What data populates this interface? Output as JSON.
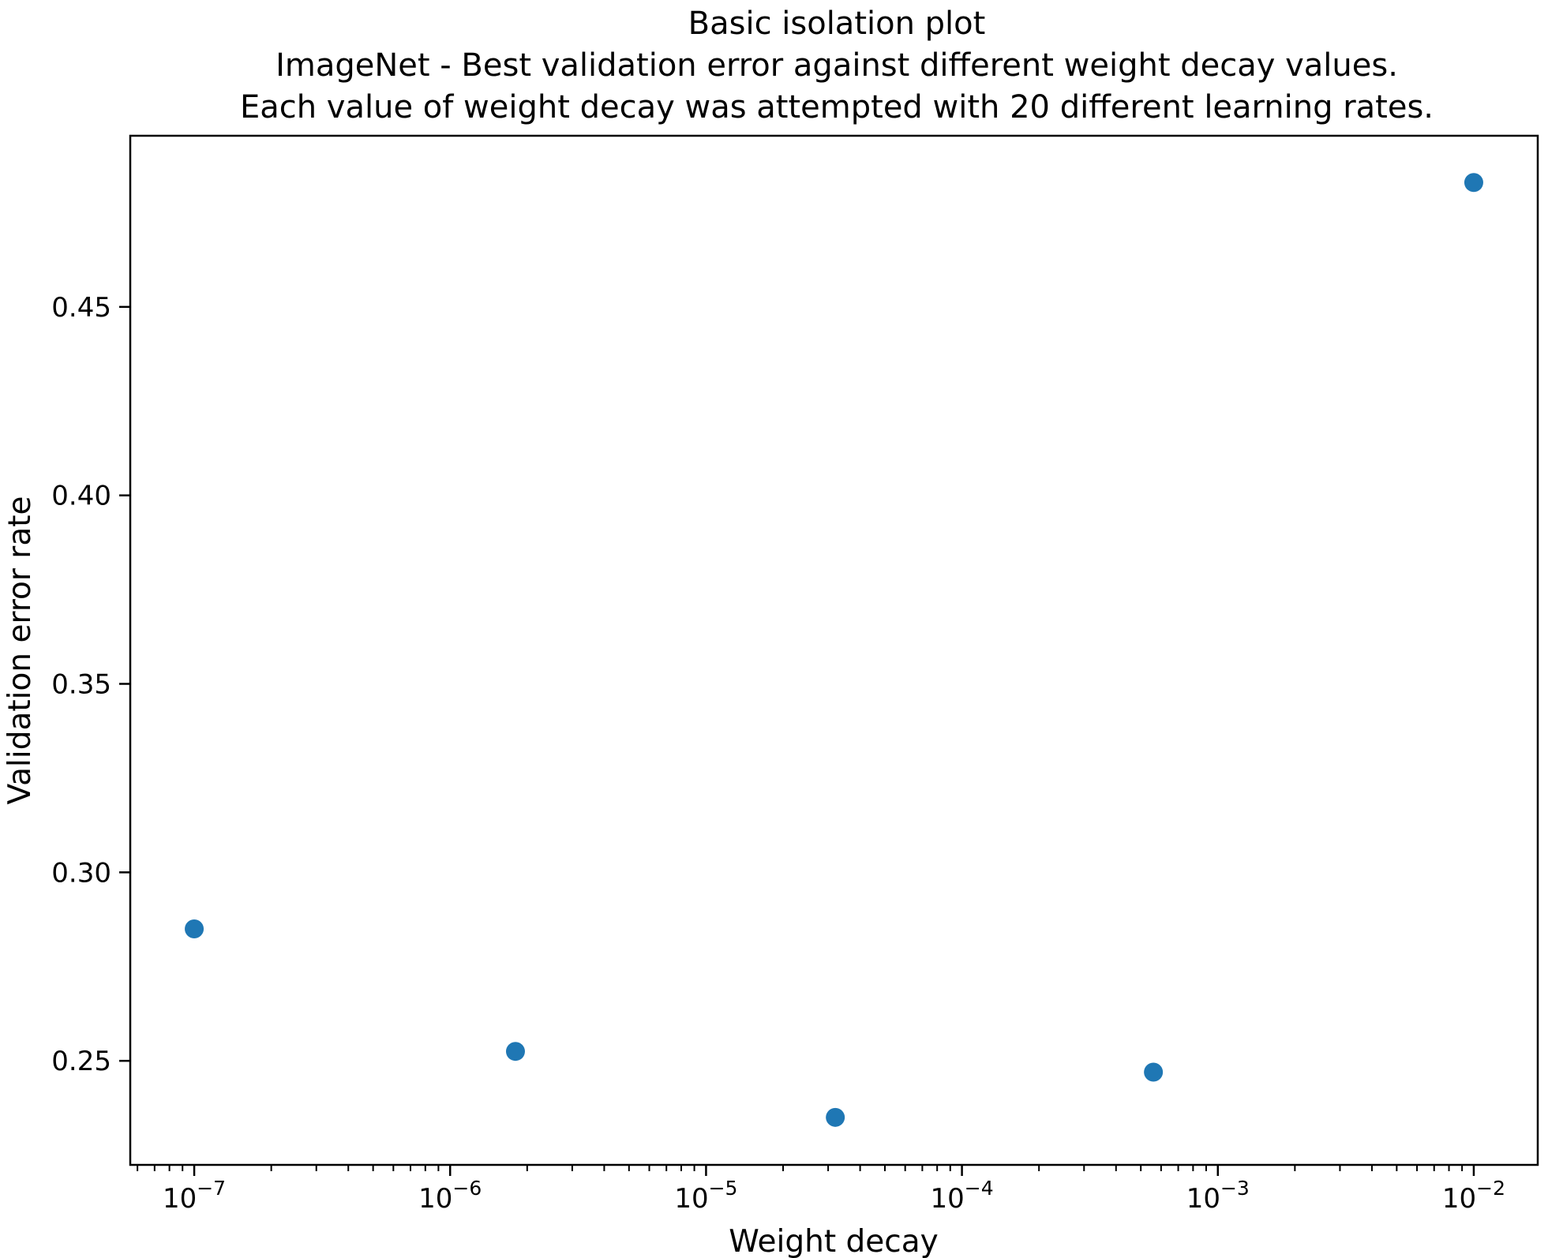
{
  "title": {
    "line1": "Basic isolation plot",
    "line2": "ImageNet - Best validation error against different weight decay values.",
    "line3": "Each value of weight decay was attempted with 20 different learning rates."
  },
  "chart_data": {
    "type": "scatter",
    "title": "Basic isolation plot\nImageNet - Best validation error against different weight decay values.\nEach value of weight decay was attempted with 20 different learning rates.",
    "xlabel": "Weight decay",
    "ylabel": "Validation error rate",
    "x_scale": "log",
    "y_scale": "linear",
    "xlim_log10": [
      -7.25,
      -1.75
    ],
    "ylim": [
      0.2224,
      0.4954
    ],
    "x_tick_exponents": [
      -7,
      -6,
      -5,
      -4,
      -3,
      -2
    ],
    "x_tick_base": "10",
    "y_ticks": [
      0.25,
      0.3,
      0.35,
      0.4,
      0.45
    ],
    "y_tick_labels": [
      "0.25",
      "0.30",
      "0.35",
      "0.40",
      "0.45"
    ],
    "points": [
      {
        "x": 1e-07,
        "y": 0.285
      },
      {
        "x": 1.8e-06,
        "y": 0.2525
      },
      {
        "x": 3.2e-05,
        "y": 0.235
      },
      {
        "x": 0.00056,
        "y": 0.247
      },
      {
        "x": 0.01,
        "y": 0.483
      }
    ],
    "marker_color": "#1f77b4",
    "axis_color": "#000000",
    "grid": false,
    "legend": null
  }
}
